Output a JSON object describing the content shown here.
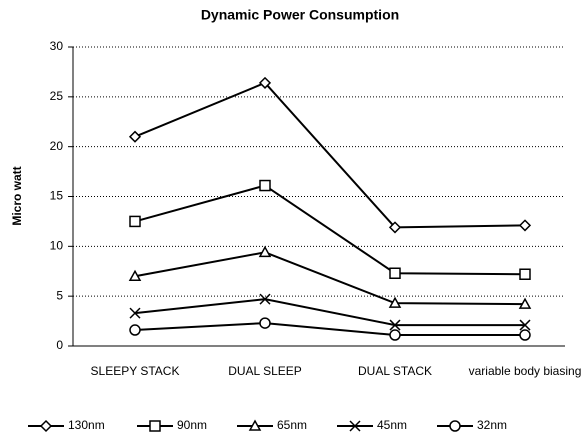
{
  "chart_data": {
    "type": "line",
    "title": "Dynamic Power Consumption",
    "y_label": "Micro watt",
    "categories": [
      "SLEEPY STACK",
      "DUAL SLEEP",
      "DUAL STACK",
      "variable body biasing"
    ],
    "series": [
      {
        "name": "130nm",
        "color": "#000000",
        "marker": "diamond",
        "values": [
          21,
          26.4,
          11.9,
          12.1
        ]
      },
      {
        "name": "90nm",
        "color": "#000000",
        "marker": "square",
        "values": [
          12.5,
          16.1,
          7.3,
          7.2
        ]
      },
      {
        "name": "65nm",
        "color": "#000000",
        "marker": "triangle",
        "values": [
          7,
          9.4,
          4.3,
          4.2
        ]
      },
      {
        "name": "45nm",
        "color": "#000000",
        "marker": "x",
        "values": [
          3.3,
          4.7,
          2.1,
          2.1
        ]
      },
      {
        "name": "32nm",
        "color": "#000000",
        "marker": "circle",
        "values": [
          1.6,
          2.3,
          1.1,
          1.1
        ]
      }
    ],
    "ylim": [
      0,
      30
    ],
    "yticks": [
      0,
      5,
      10,
      15,
      20,
      25,
      30
    ],
    "grid": true,
    "legend": "bottom"
  }
}
